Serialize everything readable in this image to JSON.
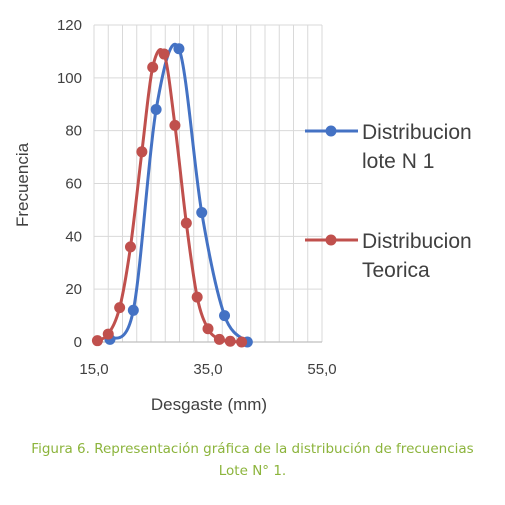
{
  "chart_data": {
    "type": "scatter",
    "xlabel": "Desgaste (mm)",
    "ylabel": "Frecuencia",
    "xlim": [
      15,
      55
    ],
    "ylim": [
      0,
      120
    ],
    "x_ticks": [
      "15,0",
      "35,0",
      "55,0"
    ],
    "y_ticks": [
      "0",
      "20",
      "40",
      "60",
      "80",
      "100",
      "120"
    ],
    "grid": true,
    "legend_position": "right",
    "series": [
      {
        "name_lines": [
          "Distribucion",
          "lote N 1"
        ],
        "color": "#4472c4",
        "x": [
          17.8,
          21.9,
          25.9,
          29.9,
          33.9,
          37.9,
          41.9
        ],
        "y": [
          1,
          12,
          88,
          111,
          49,
          10,
          0
        ]
      },
      {
        "name_lines": [
          "Distribucion",
          "Teorica"
        ],
        "color": "#c0504d",
        "x": [
          15.6,
          17.5,
          19.5,
          21.4,
          23.4,
          25.3,
          27.3,
          29.2,
          31.2,
          33.1,
          35.0,
          37.0,
          38.9,
          40.9
        ],
        "y": [
          0.5,
          3,
          13,
          36,
          72,
          104,
          109,
          82,
          45,
          17,
          5,
          1,
          0.3,
          0
        ]
      }
    ]
  },
  "caption": {
    "line1": "Figura 6. Representación gráfica de la distribución de frecuencias",
    "line2": "Lote N° 1."
  }
}
